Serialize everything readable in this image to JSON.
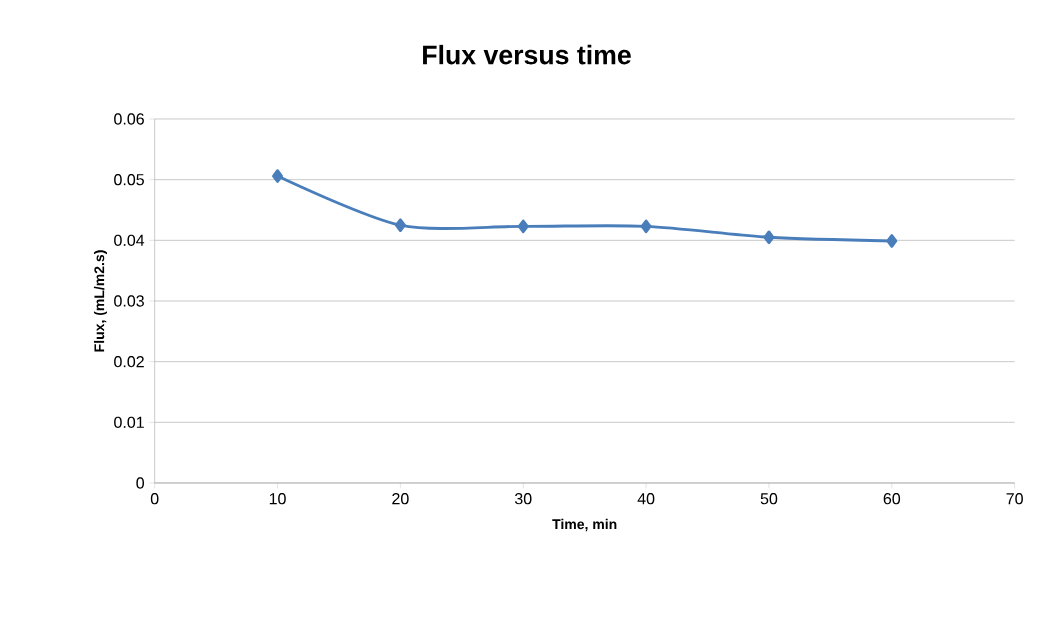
{
  "chart_data": {
    "type": "line",
    "title": "Flux versus time",
    "xlabel": "Time, min",
    "ylabel": "Flux, (mL/m2.s)",
    "x": [
      10,
      20,
      30,
      40,
      50,
      60
    ],
    "series": [
      {
        "color": "#4a7ebb",
        "values": [
          0.0506,
          0.0425,
          0.0423,
          0.0423,
          0.0405,
          0.0399
        ]
      }
    ],
    "xlim": [
      0,
      70
    ],
    "xticks": [
      0,
      10,
      20,
      30,
      40,
      50,
      60,
      70
    ],
    "ylim": [
      0,
      0.06
    ],
    "yticks": [
      0,
      0.01,
      0.02,
      0.03,
      0.04,
      0.05,
      0.06
    ],
    "grid": "y",
    "marker": "diamond",
    "line_style": "solid"
  }
}
